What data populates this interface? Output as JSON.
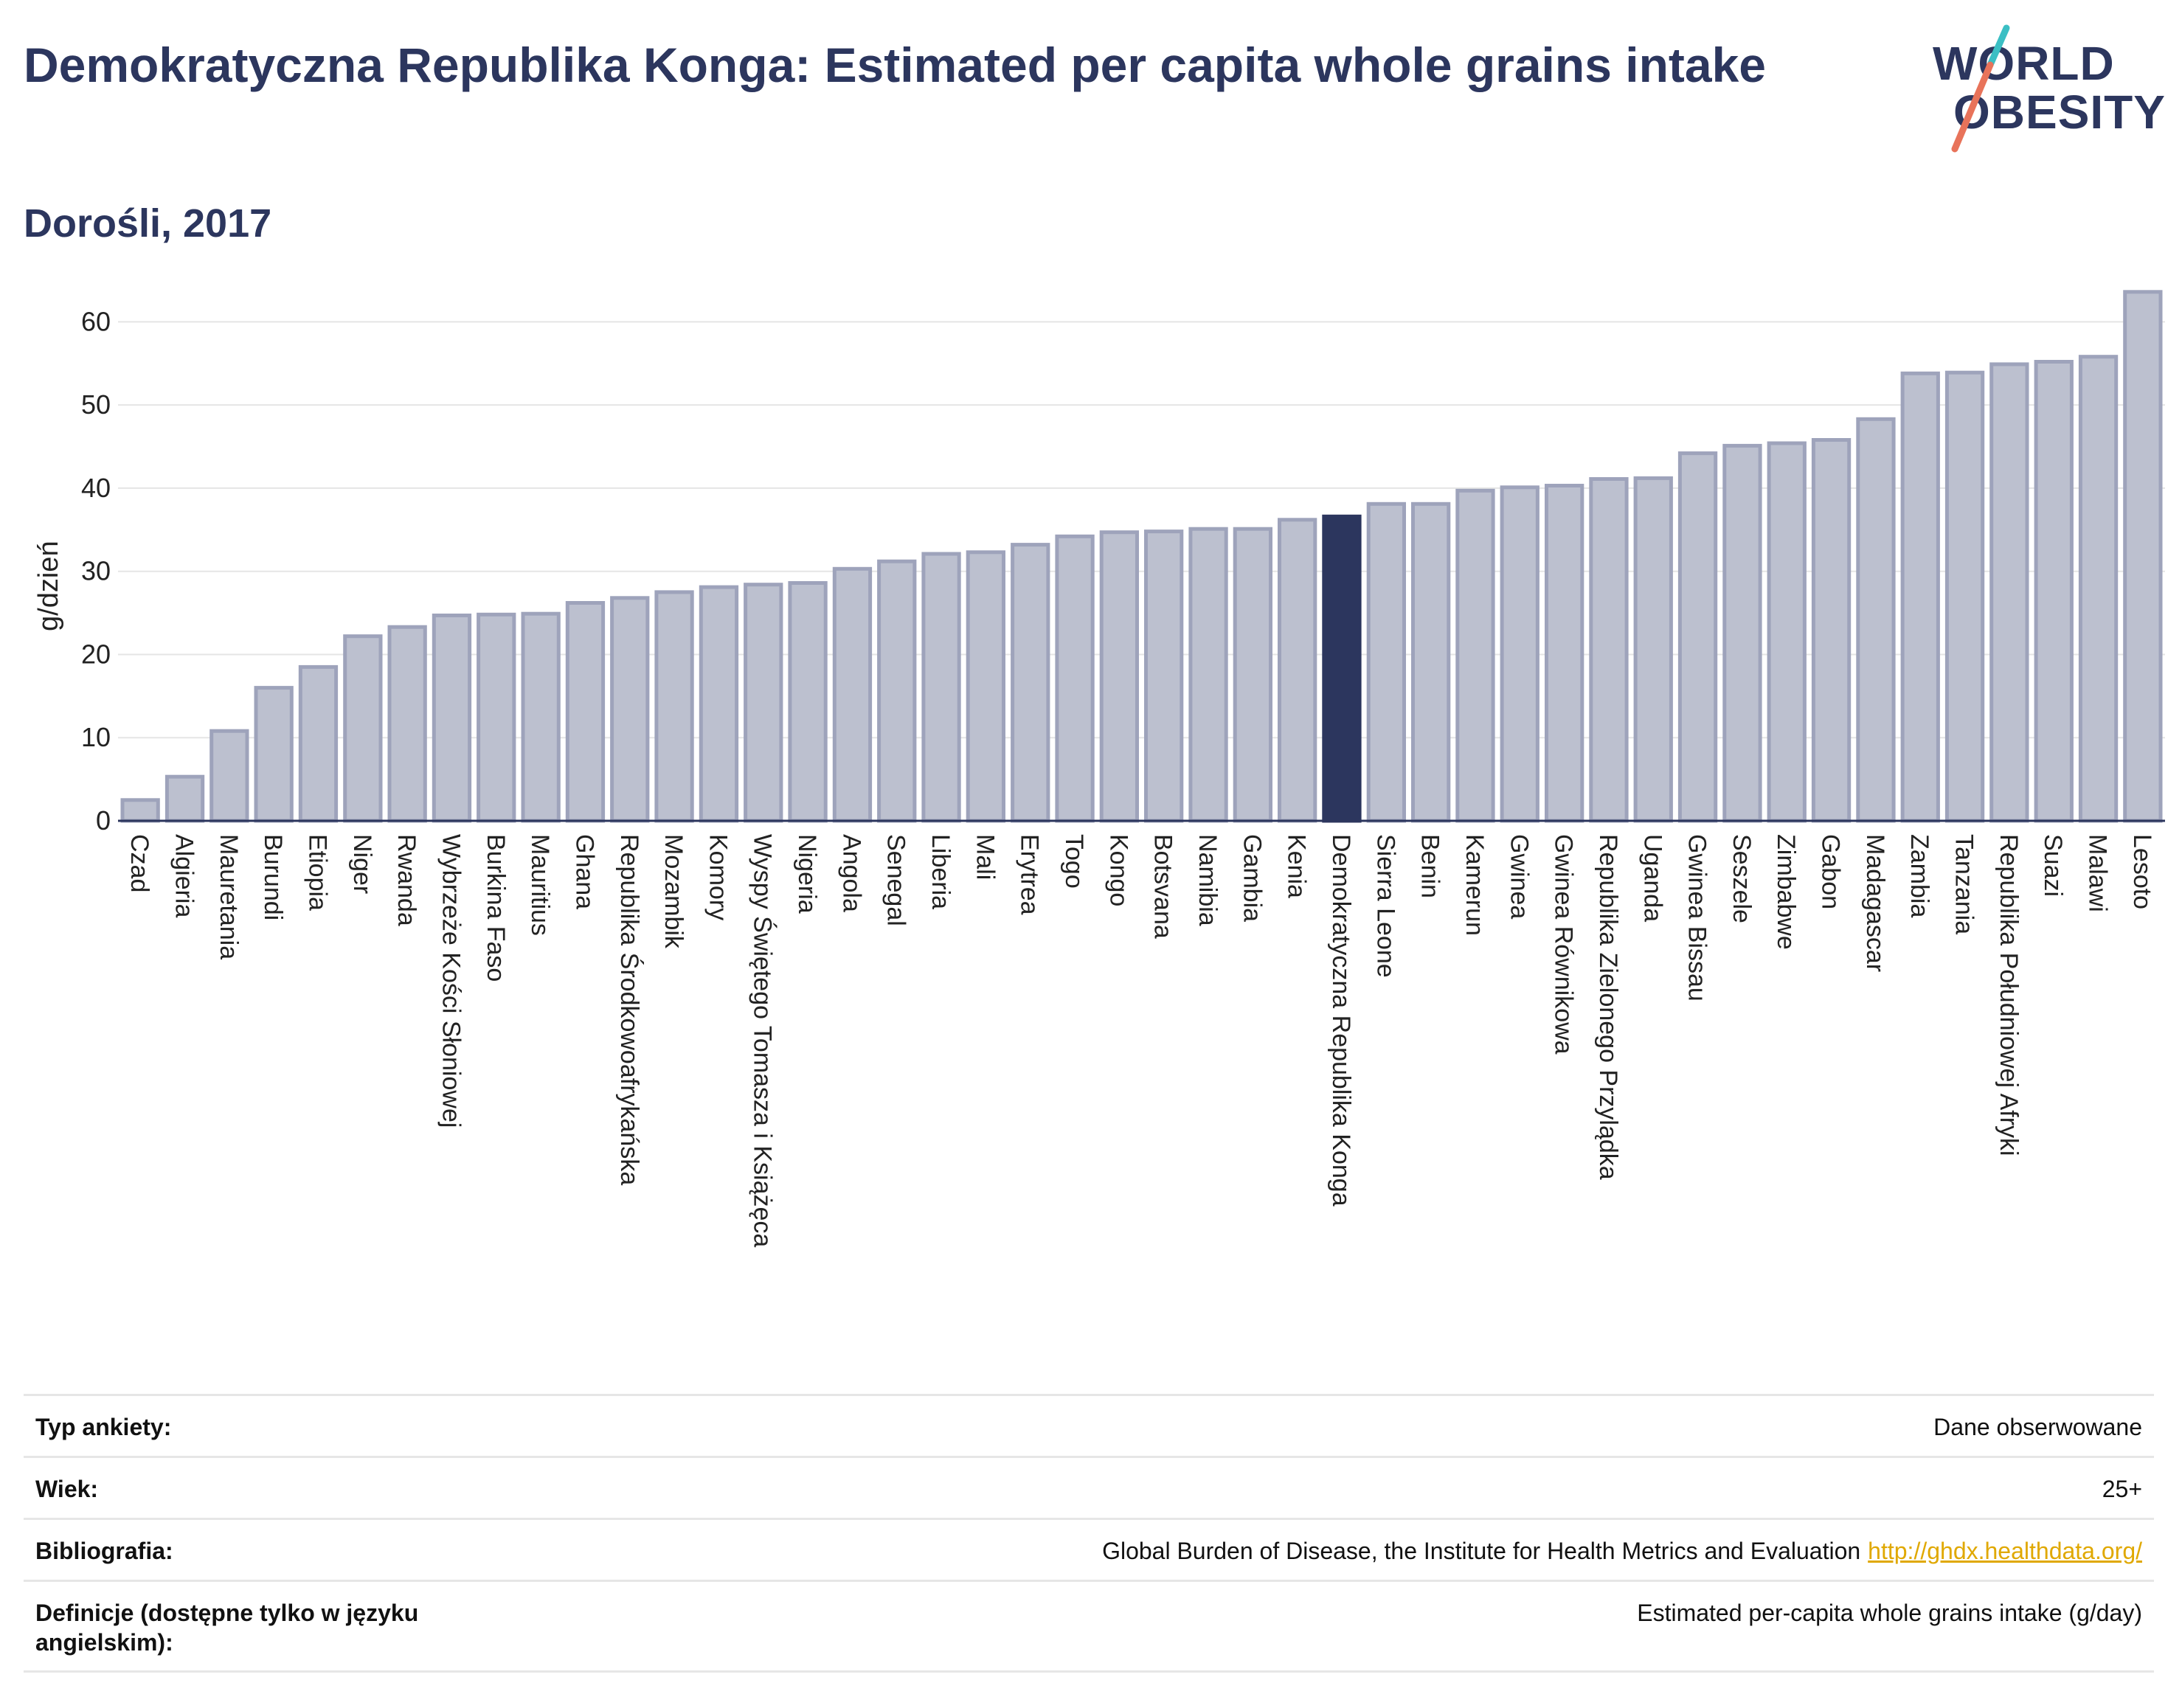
{
  "header": {
    "title": "Demokratyczna Republika Konga: Estimated per capita whole grains intake",
    "subtitle": "Dorośli, 2017"
  },
  "logo": {
    "line1": "WORLD",
    "line2": "OBESITY",
    "accent_teal": "#3bbfc4",
    "accent_red": "#e8735a"
  },
  "colors": {
    "bar": "#bcc0cf",
    "bar_border": "#9ea3bb",
    "highlight": "#2c365e"
  },
  "chart_data": {
    "type": "bar",
    "ylabel": "g/dzień",
    "ylim": [
      0,
      65
    ],
    "yticks": [
      0,
      10,
      20,
      30,
      40,
      50,
      60
    ],
    "grid": true,
    "highlight": "Demokratyczna Republika Konga",
    "categories": [
      "Czad",
      "Algieria",
      "Mauretania",
      "Burundi",
      "Etiopia",
      "Niger",
      "Rwanda",
      "Wybrzeże Kości Słoniowej",
      "Burkina Faso",
      "Mauritius",
      "Ghana",
      "Republika Środkowoafrykańska",
      "Mozambik",
      "Komory",
      "Wyspy Świętego Tomasza i Książęca",
      "Nigeria",
      "Angola",
      "Senegal",
      "Liberia",
      "Mali",
      "Erytrea",
      "Togo",
      "Kongo",
      "Botsvana",
      "Namibia",
      "Gambia",
      "Kenia",
      "Demokratyczna Republika Konga",
      "Sierra Leone",
      "Benin",
      "Kamerun",
      "Gwinea",
      "Gwinea Równikowa",
      "Republika Zielonego Przylądka",
      "Uganda",
      "Gwinea Bissau",
      "Seszele",
      "Zimbabwe",
      "Gabon",
      "Madagascar",
      "Zambia",
      "Tanzania",
      "Republika Południowej Afryki",
      "Suazi",
      "Malawi",
      "Lesoto"
    ],
    "values": [
      2.5,
      5.3,
      10.8,
      16.0,
      18.5,
      22.2,
      23.3,
      24.7,
      24.8,
      24.9,
      26.2,
      26.8,
      27.5,
      28.1,
      28.4,
      28.6,
      30.3,
      31.2,
      32.1,
      32.3,
      33.2,
      34.2,
      34.7,
      34.8,
      35.1,
      35.1,
      36.2,
      36.6,
      38.1,
      38.1,
      39.7,
      40.1,
      40.3,
      41.1,
      41.2,
      44.2,
      45.1,
      45.4,
      45.8,
      48.3,
      53.8,
      53.9,
      54.9,
      55.2,
      55.8,
      63.6
    ]
  },
  "info": [
    {
      "label": "Typ ankiety:",
      "value": "Dane obserwowane"
    },
    {
      "label": "Wiek:",
      "value": "25+"
    },
    {
      "label": "Bibliografia:",
      "value": "Global Burden of Disease, the Institute for Health Metrics and Evaluation",
      "link": "http://ghdx.healthdata.org/"
    },
    {
      "label": "Definicje (dostępne tylko w języku angielskim):",
      "value": "Estimated per-capita whole grains intake (g/day)"
    }
  ]
}
